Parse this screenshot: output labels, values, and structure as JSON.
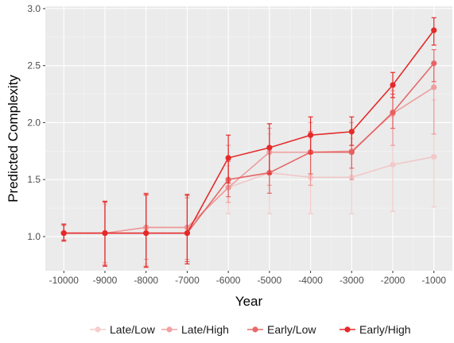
{
  "chart_data": {
    "type": "line",
    "title": "",
    "xlabel": "Year",
    "ylabel": "Predicted Complexity",
    "x": [
      -10000,
      -9000,
      -8000,
      -7000,
      -6000,
      -5000,
      -4000,
      -3000,
      -2000,
      -1000
    ],
    "x_tick_labels": [
      "-10000",
      "-9000",
      "-8000",
      "-7000",
      "-6000",
      "-5000",
      "-4000",
      "-3000",
      "-2000",
      "-1000"
    ],
    "y_ticks": [
      1.0,
      1.5,
      2.0,
      2.5,
      3.0
    ],
    "y_tick_labels": [
      "1.0",
      "1.5",
      "2.0",
      "2.5",
      "3.0"
    ],
    "xlim": [
      -10450,
      -550
    ],
    "ylim": [
      0.7,
      3.02
    ],
    "grid": true,
    "legend_position": "bottom",
    "series": [
      {
        "name": "Late/Low",
        "color": "#f4b9b9",
        "opacity": 0.7,
        "values": [
          1.03,
          1.03,
          1.08,
          1.08,
          1.43,
          1.56,
          1.52,
          1.52,
          1.63,
          1.7
        ],
        "err_low": [
          0.97,
          0.77,
          0.76,
          0.8,
          1.2,
          1.2,
          1.2,
          1.2,
          1.22,
          1.26
        ],
        "err_high": [
          1.1,
          1.28,
          1.38,
          1.34,
          1.62,
          1.9,
          1.86,
          1.86,
          2.05,
          2.2
        ]
      },
      {
        "name": "Late/High",
        "color": "#ee8c8c",
        "opacity": 0.8,
        "values": [
          1.03,
          1.03,
          1.08,
          1.08,
          1.43,
          1.74,
          1.74,
          1.75,
          2.08,
          2.31
        ],
        "err_low": [
          0.97,
          0.77,
          0.8,
          0.8,
          1.3,
          1.45,
          1.45,
          1.5,
          1.8,
          1.9
        ],
        "err_high": [
          1.1,
          1.3,
          1.36,
          1.34,
          1.8,
          1.95,
          2.0,
          2.0,
          2.28,
          2.52
        ]
      },
      {
        "name": "Early/Low",
        "color": "#e65a5a",
        "opacity": 0.9,
        "values": [
          1.03,
          1.03,
          1.03,
          1.03,
          1.5,
          1.56,
          1.74,
          1.74,
          2.09,
          2.52
        ],
        "err_low": [
          0.97,
          0.75,
          0.74,
          0.78,
          1.35,
          1.38,
          1.55,
          1.6,
          1.95,
          2.36
        ],
        "err_high": [
          1.1,
          1.3,
          1.38,
          1.36,
          1.66,
          1.78,
          1.92,
          1.92,
          2.25,
          2.64
        ]
      },
      {
        "name": "Early/High",
        "color": "#e52929",
        "opacity": 1.0,
        "values": [
          1.03,
          1.03,
          1.03,
          1.03,
          1.69,
          1.78,
          1.89,
          1.92,
          2.33,
          2.81
        ],
        "err_low": [
          0.96,
          0.74,
          0.73,
          0.76,
          1.47,
          1.55,
          1.73,
          1.8,
          2.22,
          2.68
        ],
        "err_high": [
          1.11,
          1.31,
          1.37,
          1.37,
          1.89,
          1.99,
          2.05,
          2.05,
          2.44,
          2.92
        ]
      }
    ]
  }
}
